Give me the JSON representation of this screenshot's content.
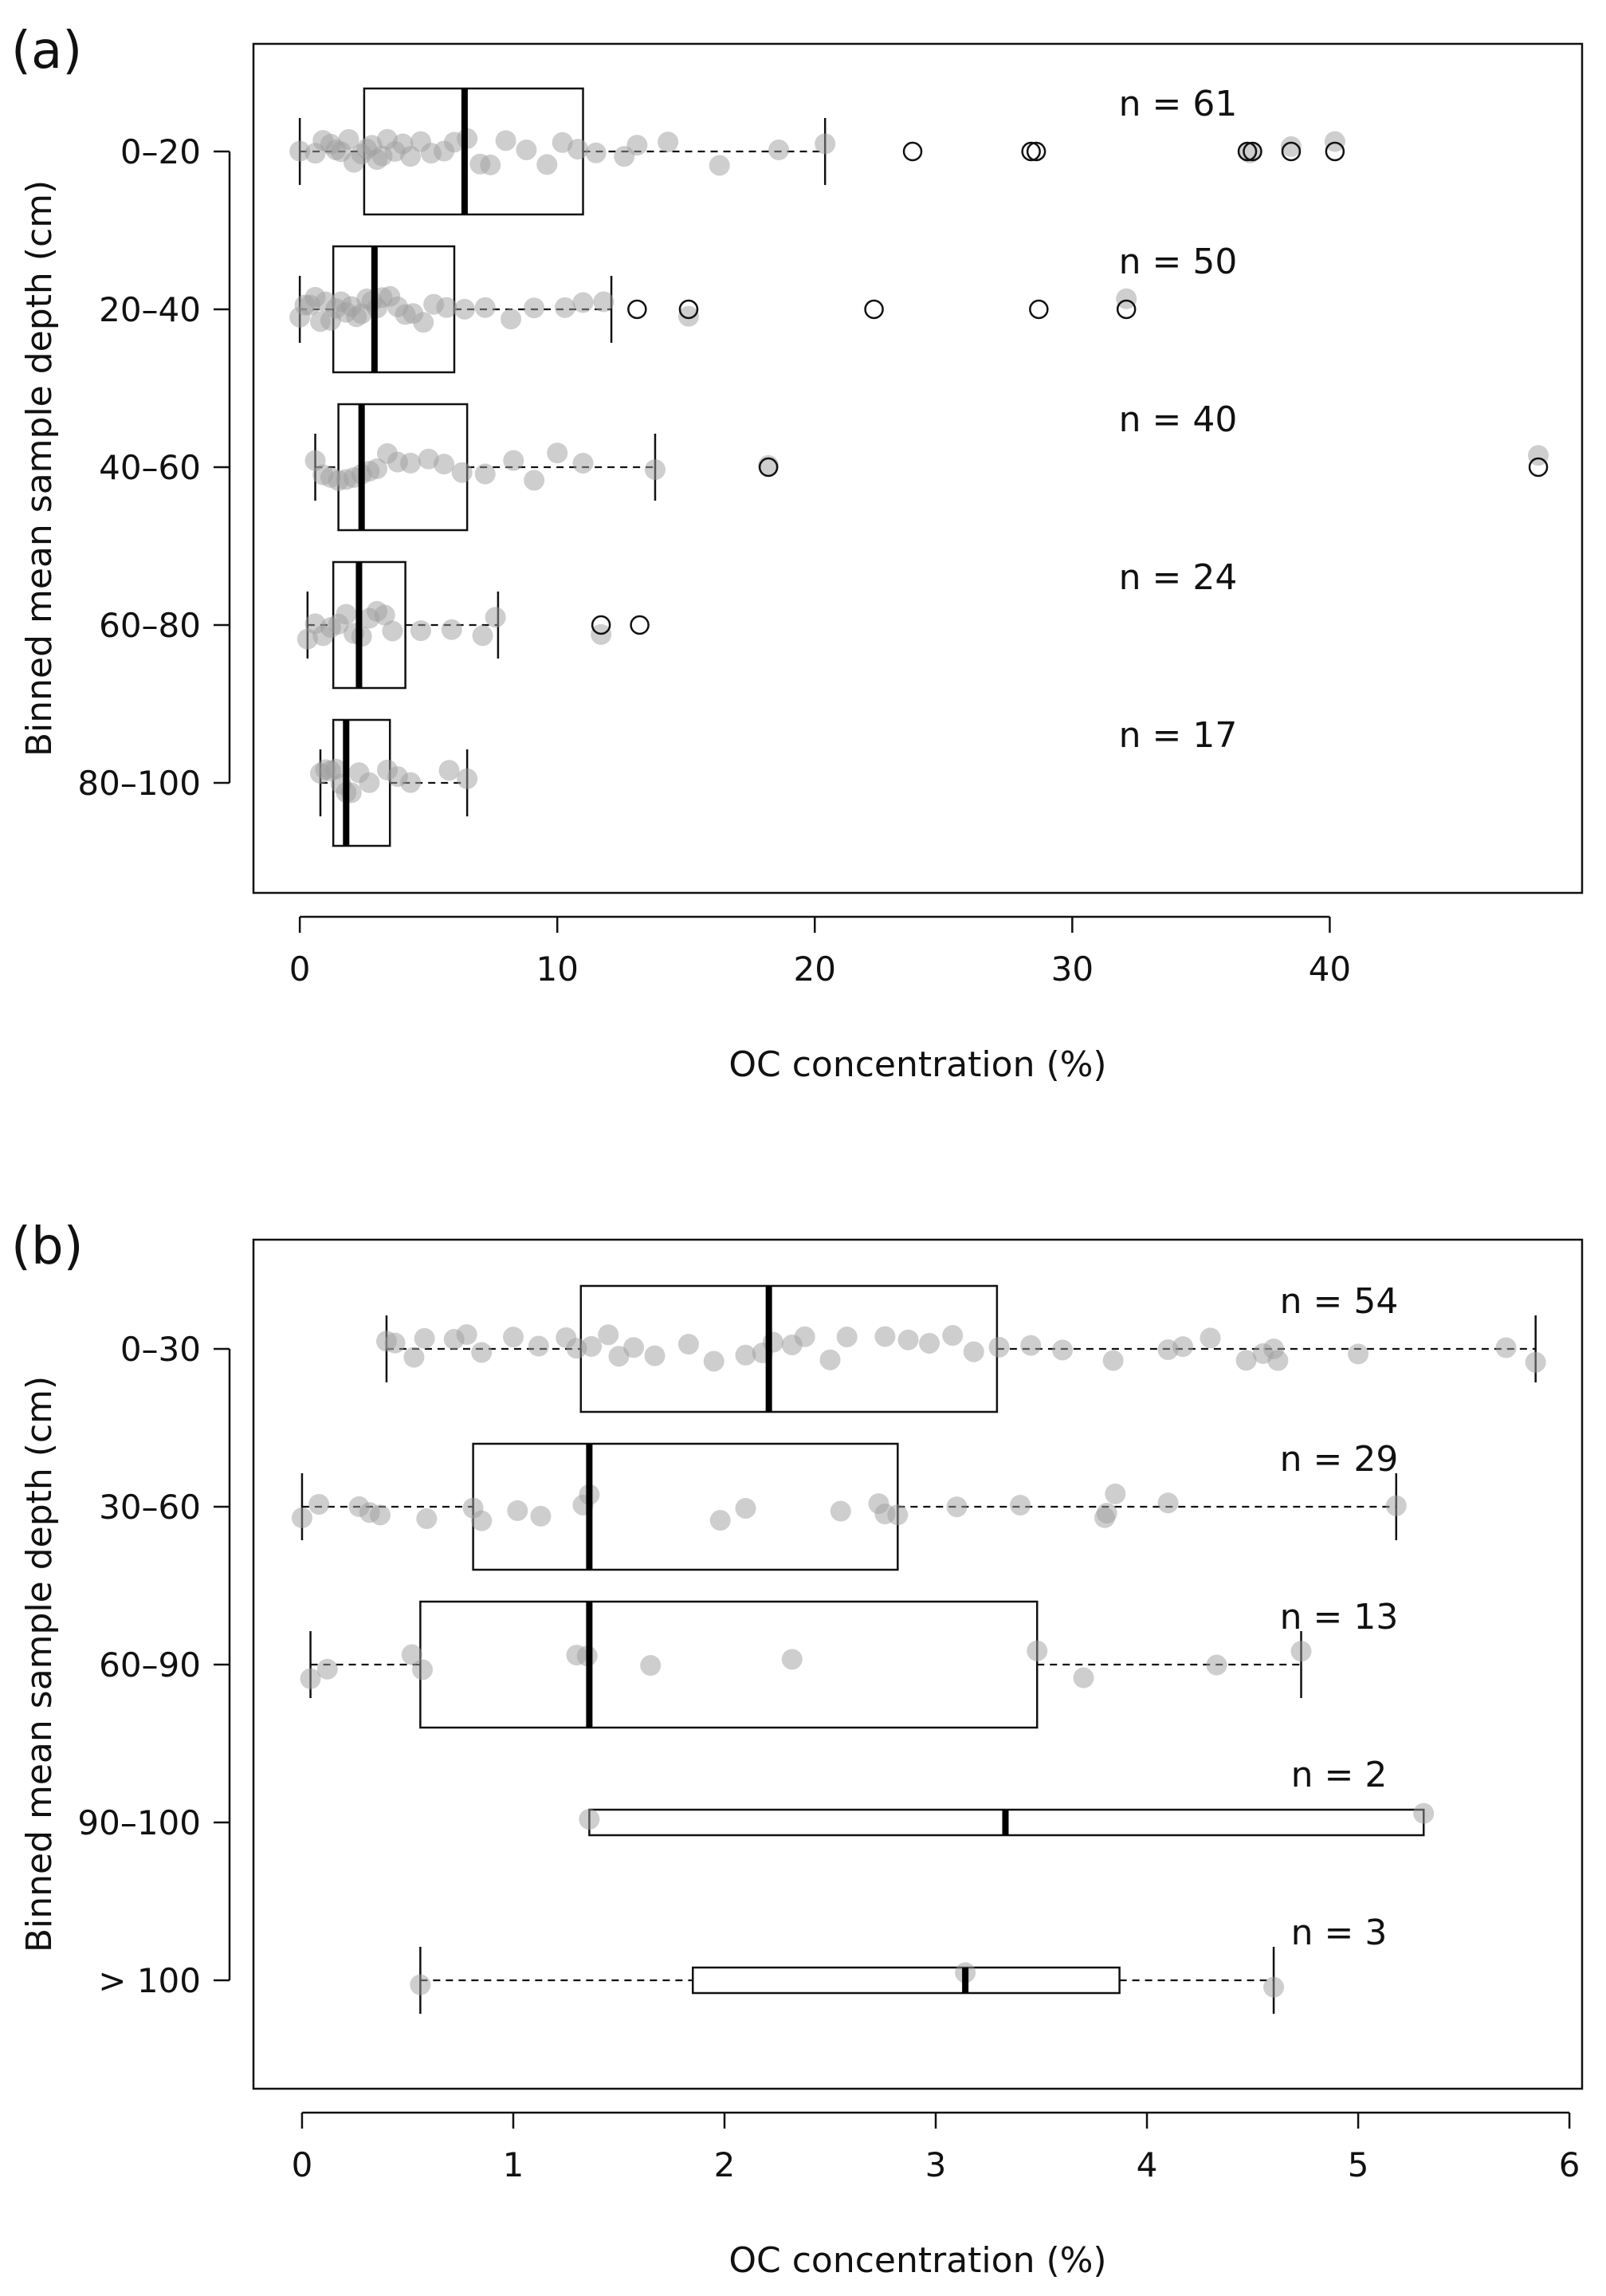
{
  "chart_data": [
    {
      "type": "boxplot",
      "panel_label": "(a)",
      "orientation": "horizontal",
      "xlabel": "OC concentration (%)",
      "ylabel": "Binned mean sample depth (cm)",
      "xlim": [
        -1.8,
        49.8
      ],
      "xticks": [
        0,
        10,
        20,
        30,
        40
      ],
      "categories": [
        "0–20",
        "20–40",
        "40–60",
        "60–80",
        "80–100"
      ],
      "boxes": [
        {
          "category": "0–20",
          "n_label": "n = 61",
          "whisker_low": 0,
          "q1": 2.5,
          "median": 6.4,
          "q3": 11.0,
          "whisker_high": 20.4,
          "outliers": [
            23.8,
            28.4,
            28.6,
            36.8,
            37.0,
            38.5,
            40.2
          ],
          "points": [
            0.0,
            0.6,
            0.9,
            1.2,
            1.4,
            1.6,
            1.9,
            2.1,
            2.4,
            2.6,
            2.8,
            3.0,
            3.2,
            3.4,
            3.7,
            4.0,
            4.3,
            4.7,
            5.1,
            5.6,
            6.0,
            6.5,
            7.0,
            7.4,
            8.0,
            8.8,
            9.6,
            10.2,
            10.8,
            11.5,
            12.6,
            13.1,
            14.3,
            16.3,
            18.6,
            20.4,
            36.9,
            38.5,
            40.2
          ]
        },
        {
          "category": "20–40",
          "n_label": "n = 50",
          "whisker_low": 0,
          "q1": 1.3,
          "median": 2.9,
          "q3": 6.0,
          "whisker_high": 12.1,
          "outliers": [
            13.1,
            15.1,
            22.3,
            28.7,
            32.1
          ],
          "points": [
            0.0,
            0.2,
            0.4,
            0.6,
            0.8,
            1.0,
            1.2,
            1.4,
            1.6,
            1.8,
            2.0,
            2.2,
            2.4,
            2.6,
            2.8,
            3.0,
            3.2,
            3.5,
            3.8,
            4.1,
            4.4,
            4.8,
            5.2,
            5.7,
            6.4,
            7.2,
            8.2,
            9.1,
            10.3,
            11.0,
            11.8,
            15.1,
            32.1
          ]
        },
        {
          "category": "40–60",
          "n_label": "n = 40",
          "whisker_low": 0.6,
          "q1": 1.5,
          "median": 2.4,
          "q3": 6.5,
          "whisker_high": 13.8,
          "outliers": [
            18.2,
            48.1
          ],
          "points": [
            0.6,
            0.9,
            1.2,
            1.5,
            1.8,
            2.1,
            2.4,
            2.7,
            3.0,
            3.4,
            3.8,
            4.3,
            5.0,
            5.6,
            6.3,
            7.2,
            8.3,
            9.1,
            10.0,
            11.0,
            13.8,
            18.2,
            48.1
          ]
        },
        {
          "category": "60–80",
          "n_label": "n = 24",
          "whisker_low": 0.3,
          "q1": 1.3,
          "median": 2.3,
          "q3": 4.1,
          "whisker_high": 7.7,
          "outliers": [
            11.7,
            13.2
          ],
          "points": [
            0.3,
            0.6,
            0.9,
            1.2,
            1.5,
            1.8,
            2.1,
            2.4,
            2.7,
            3.0,
            3.3,
            3.6,
            4.7,
            5.9,
            7.1,
            7.6,
            11.7
          ]
        },
        {
          "category": "80–100",
          "n_label": "n = 17",
          "whisker_low": 0.8,
          "q1": 1.3,
          "median": 1.8,
          "q3": 3.5,
          "whisker_high": 6.5,
          "outliers": [],
          "points": [
            0.8,
            1.0,
            1.2,
            1.4,
            1.6,
            1.8,
            2.0,
            2.3,
            2.7,
            3.4,
            3.8,
            4.3,
            5.8,
            6.5
          ]
        }
      ]
    },
    {
      "type": "boxplot",
      "panel_label": "(b)",
      "orientation": "horizontal",
      "xlabel": "OC concentration (%)",
      "ylabel": "Binned mean sample depth (cm)",
      "xlim": [
        -0.23,
        6.06
      ],
      "xticks": [
        0,
        1,
        2,
        3,
        4,
        5,
        6
      ],
      "categories": [
        "0–30",
        "30–60",
        "60–90",
        "90–100",
        "> 100"
      ],
      "boxes": [
        {
          "category": "0–30",
          "n_label": "n = 54",
          "whisker_low": 0.4,
          "q1": 1.32,
          "median": 2.21,
          "q3": 3.29,
          "whisker_high": 5.84,
          "outliers": [],
          "points": [
            0.4,
            0.44,
            0.53,
            0.58,
            0.72,
            0.78,
            0.85,
            1.0,
            1.12,
            1.25,
            1.3,
            1.37,
            1.45,
            1.5,
            1.57,
            1.67,
            1.83,
            1.95,
            2.1,
            2.18,
            2.23,
            2.32,
            2.38,
            2.5,
            2.58,
            2.76,
            2.87,
            2.97,
            3.08,
            3.18,
            3.3,
            3.45,
            3.6,
            3.84,
            4.1,
            4.17,
            4.3,
            4.47,
            4.55,
            4.6,
            4.62,
            5.0,
            5.7,
            5.84
          ]
        },
        {
          "category": "30–60",
          "n_label": "n = 29",
          "whisker_low": 0,
          "q1": 0.81,
          "median": 1.36,
          "q3": 2.82,
          "whisker_high": 5.18,
          "outliers": [],
          "points": [
            0.0,
            0.08,
            0.27,
            0.32,
            0.37,
            0.59,
            0.81,
            0.85,
            1.02,
            1.13,
            1.33,
            1.36,
            1.98,
            2.1,
            2.55,
            2.73,
            2.76,
            2.82,
            3.1,
            3.4,
            3.8,
            3.81,
            3.85,
            4.1,
            5.18
          ]
        },
        {
          "category": "60–90",
          "n_label": "n = 13",
          "whisker_low": 0.04,
          "q1": 0.56,
          "median": 1.36,
          "q3": 3.48,
          "whisker_high": 4.73,
          "outliers": [],
          "points": [
            0.04,
            0.12,
            0.52,
            0.57,
            1.3,
            1.35,
            1.65,
            2.32,
            3.48,
            3.7,
            4.33,
            4.73
          ]
        },
        {
          "category": "90–100",
          "n_label": "n = 2",
          "whisker_low": 1.36,
          "q1": 1.36,
          "median": 3.33,
          "q3": 5.31,
          "whisker_high": 5.31,
          "outliers": [],
          "points": [
            1.36,
            5.31
          ]
        },
        {
          "category": "> 100",
          "n_label": "n = 3",
          "whisker_low": 0.56,
          "q1": 1.85,
          "median": 3.14,
          "q3": 3.87,
          "whisker_high": 4.6,
          "outliers": [],
          "points": [
            0.56,
            3.14,
            4.6
          ]
        }
      ]
    }
  ]
}
